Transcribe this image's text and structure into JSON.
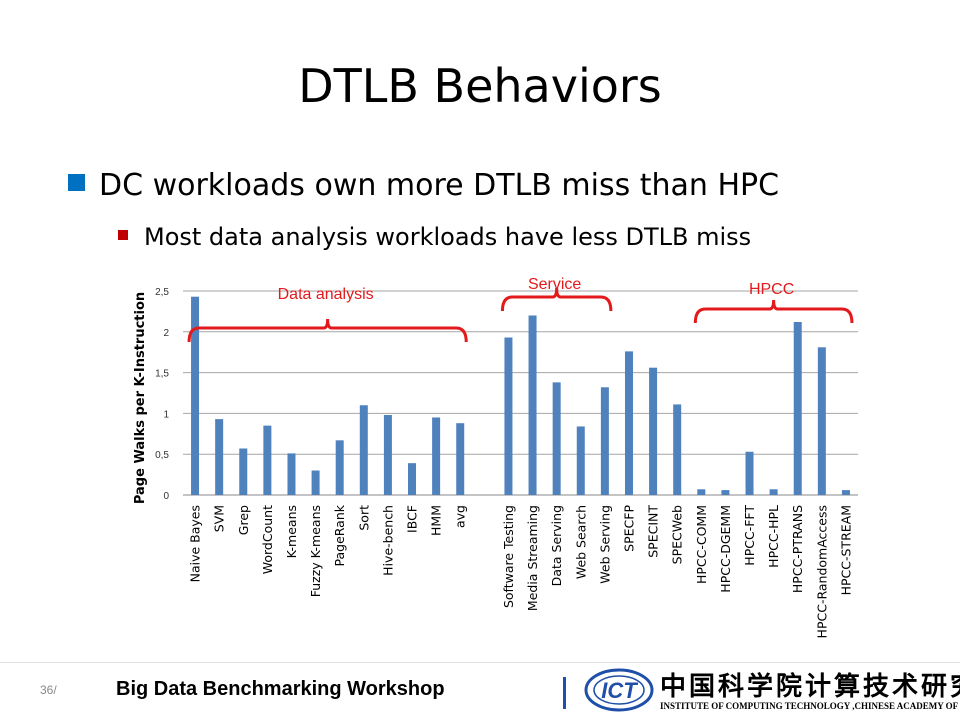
{
  "slide": {
    "title": "DTLB Behaviors",
    "bullet1": "DC workloads own more DTLB miss than HPC",
    "bullet2": "Most data analysis workloads have less DTLB miss"
  },
  "footer": {
    "page_number": "36/",
    "workshop": "Big Data Benchmarking Workshop",
    "logo_text": "ICT",
    "org_name_cn": "中国科学院计算技术研究所",
    "org_name_en": "INSTITUTE OF COMPUTING TECHNOLOGY ,CHINESE ACADEMY OF SCIENCES"
  },
  "colors": {
    "bar": "#4f81bd",
    "bracket": "#e31a1c",
    "bullet1": "#0070c0",
    "bullet2": "#c00000",
    "logo": "#1f4fa8"
  },
  "chart_data": {
    "type": "bar",
    "ylabel": "Page Walks per K-Instruction",
    "ylim": [
      0,
      2.5
    ],
    "yticks": [
      "0",
      "0,5",
      "1",
      "1,5",
      "2",
      "2,5"
    ],
    "grid": true,
    "categories": [
      "Naive Bayes",
      "SVM",
      "Grep",
      "WordCount",
      "K-means",
      "Fuzzy K-means",
      "PageRank",
      "Sort",
      "Hive-bench",
      "IBCF",
      "HMM",
      "avg",
      "",
      "Software Testing",
      "Media Streaming",
      "Data Serving",
      "Web Search",
      "Web Serving",
      "SPECFP",
      "SPECINT",
      "SPECWeb",
      "HPCC-COMM",
      "HPCC-DGEMM",
      "HPCC-FFT",
      "HPCC-HPL",
      "HPCC-PTRANS",
      "HPCC-RandomAccess",
      "HPCC-STREAM"
    ],
    "values": [
      2.43,
      0.93,
      0.57,
      0.85,
      0.51,
      0.3,
      0.67,
      1.1,
      0.98,
      0.39,
      0.95,
      0.88,
      null,
      1.93,
      2.2,
      1.38,
      0.84,
      1.32,
      1.76,
      1.56,
      1.11,
      0.07,
      0.06,
      0.53,
      0.07,
      2.12,
      1.81,
      0.06
    ],
    "groups": [
      {
        "label": "Data analysis",
        "from": 0,
        "to": 11
      },
      {
        "label": "Service",
        "from": 13,
        "to": 17
      },
      {
        "label": "HPCC",
        "from": 21,
        "to": 27
      }
    ]
  }
}
